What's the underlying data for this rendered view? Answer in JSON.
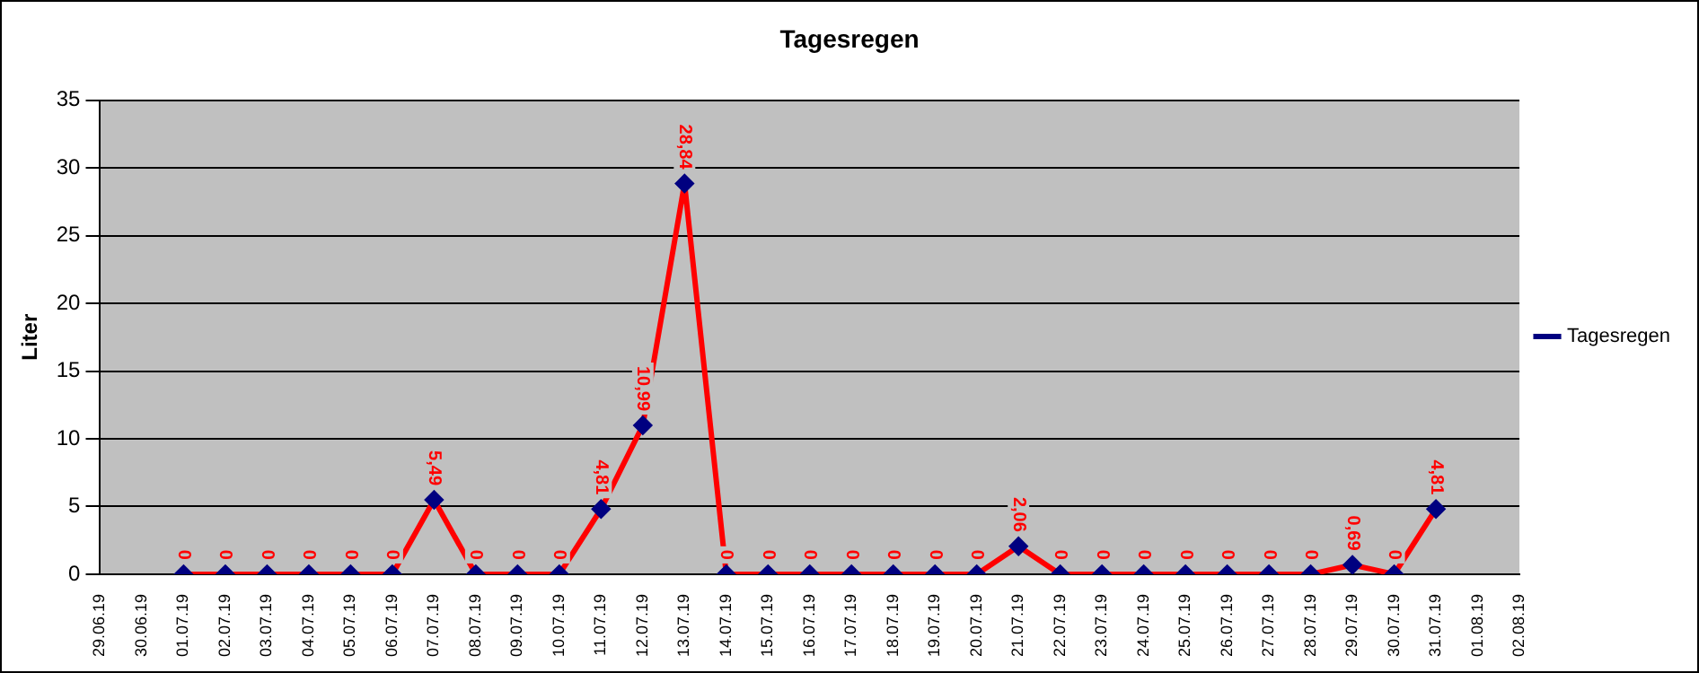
{
  "chart_data": {
    "type": "line",
    "title": "Tagesregen",
    "ylabel": "Liter",
    "categories": [
      "29.06.19",
      "30.06.19",
      "01.07.19",
      "02.07.19",
      "03.07.19",
      "04.07.19",
      "05.07.19",
      "06.07.19",
      "07.07.19",
      "08.07.19",
      "09.07.19",
      "10.07.19",
      "11.07.19",
      "12.07.19",
      "13.07.19",
      "14.07.19",
      "15.07.19",
      "16.07.19",
      "17.07.19",
      "18.07.19",
      "19.07.19",
      "20.07.19",
      "21.07.19",
      "22.07.19",
      "23.07.19",
      "24.07.19",
      "25.07.19",
      "26.07.19",
      "27.07.19",
      "28.07.19",
      "29.07.19",
      "30.07.19",
      "31.07.19",
      "01.08.19",
      "02.08.19"
    ],
    "series": [
      {
        "name": "Tagesregen",
        "color": "#ff0000",
        "values": [
          null,
          null,
          0,
          0,
          0,
          0,
          0,
          0,
          5.49,
          0,
          0,
          0,
          4.81,
          10.99,
          28.84,
          0,
          0,
          0,
          0,
          0,
          0,
          0,
          2.06,
          0,
          0,
          0,
          0,
          0,
          0,
          0,
          0.69,
          0,
          4.81,
          null,
          null
        ],
        "value_labels": [
          null,
          null,
          "0",
          "0",
          "0",
          "0",
          "0",
          "0",
          "5,49",
          "0",
          "0",
          "0",
          "4,81",
          "10,99",
          "28,84",
          "0",
          "0",
          "0",
          "0",
          "0",
          "0",
          "0",
          "2,06",
          "0",
          "0",
          "0",
          "0",
          "0",
          "0",
          "0",
          "0,69",
          "0",
          "4,81",
          null,
          null
        ]
      }
    ],
    "ylim": [
      0,
      35
    ],
    "yticks": [
      0,
      5,
      10,
      15,
      20,
      25,
      30,
      35
    ],
    "grid": "y",
    "legend": "right",
    "marker": "diamond",
    "line_style": "solid"
  }
}
